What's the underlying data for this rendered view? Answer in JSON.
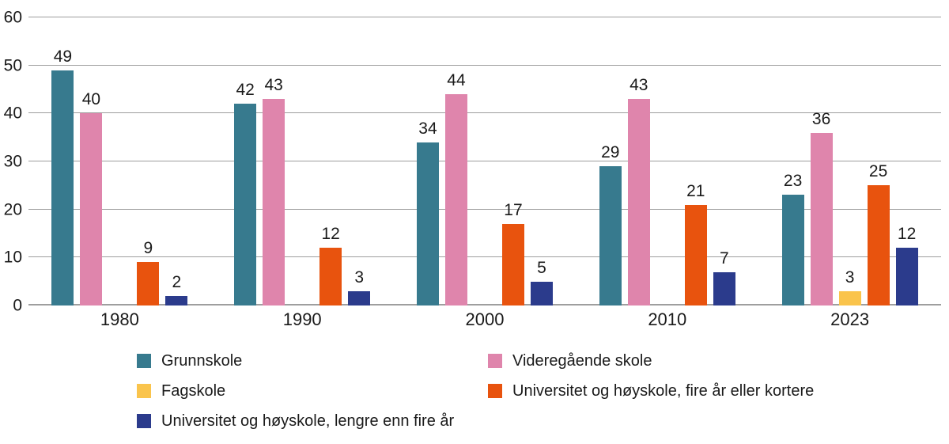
{
  "chart_data": {
    "type": "bar",
    "categories": [
      "1980",
      "1990",
      "2000",
      "2010",
      "2023"
    ],
    "series": [
      {
        "name": "Grunnskole",
        "color": "#377a8e",
        "values": [
          49,
          42,
          34,
          29,
          23
        ]
      },
      {
        "name": "Videregående skole",
        "color": "#df85ac",
        "values": [
          40,
          43,
          44,
          43,
          36
        ]
      },
      {
        "name": "Fagskole",
        "color": "#fac44c",
        "values": [
          null,
          null,
          null,
          null,
          3
        ]
      },
      {
        "name": "Universitet og høyskole, fire år eller kortere",
        "color": "#e8530e",
        "values": [
          9,
          12,
          17,
          21,
          25
        ]
      },
      {
        "name": "Universitet og høyskole, lengre enn fire år",
        "color": "#2b3b8c",
        "values": [
          2,
          3,
          5,
          7,
          12
        ]
      }
    ],
    "title": "",
    "xlabel": "",
    "ylabel": "",
    "ylim": [
      0,
      60
    ],
    "yticks": [
      0,
      10,
      20,
      30,
      40,
      50,
      60
    ],
    "grid": true,
    "value_labels": true,
    "legend_position": "bottom",
    "legend_columns": [
      [
        0,
        2,
        4
      ],
      [
        1,
        3
      ]
    ]
  },
  "colors": {
    "grid": "#9e9e9e",
    "axis": "#9e9e9e",
    "text": "#1a1a1a",
    "background": "#ffffff"
  }
}
